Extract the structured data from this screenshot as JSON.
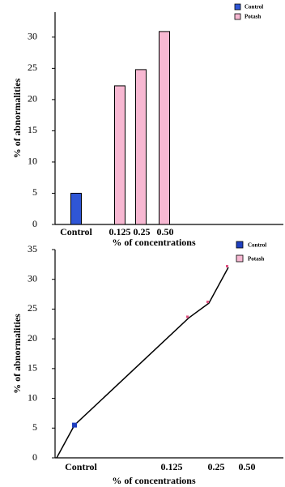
{
  "chart_data": [
    {
      "type": "bar",
      "categories": [
        "Control",
        "0.125",
        "0.25",
        "0.50"
      ],
      "series": [
        {
          "name": "Control",
          "color": "#2f56d6",
          "values": [
            5,
            null,
            null,
            null
          ]
        },
        {
          "name": "Potash",
          "color": "#f7b8d2",
          "values": [
            null,
            22.2,
            24.8,
            30.9
          ]
        }
      ],
      "ylim": [
        0,
        34
      ],
      "yticks": [
        0,
        5,
        10,
        15,
        20,
        25,
        30
      ],
      "ylabel": "% of abnormalities",
      "xlabel": "% of concentrations",
      "legend_position": "upper right"
    },
    {
      "type": "line",
      "categories": [
        null,
        "Control",
        "0.125",
        "0.25",
        "0.50"
      ],
      "values": [
        0,
        5.5,
        23.5,
        26,
        32
      ],
      "line_color": "#000000",
      "point_colors": [
        null,
        "#1f3fbf",
        "#e05080",
        "#e05080",
        "#e05080"
      ],
      "legend": [
        {
          "name": "Control",
          "color": "#1f3fbf"
        },
        {
          "name": "Potash",
          "color": "#f7b8d2"
        }
      ],
      "ylim": [
        0,
        35
      ],
      "yticks": [
        0,
        5,
        10,
        15,
        20,
        25,
        30,
        35
      ],
      "ylabel": "% of abnormalities",
      "xlabel": "% of concentrations",
      "legend_position": "upper right"
    }
  ]
}
